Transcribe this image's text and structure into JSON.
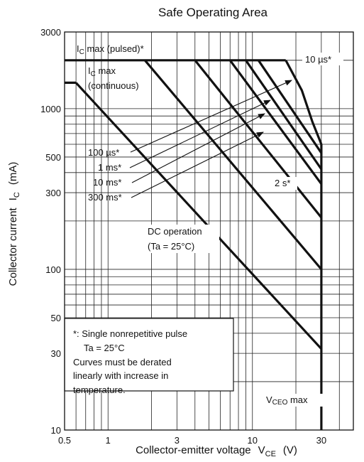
{
  "chart_data": {
    "type": "line",
    "title": "Safe Operating Area",
    "xlabel": {
      "main": "Collector-emitter voltage",
      "sym": "V",
      "sub": "CE",
      "unit": "(V)"
    },
    "ylabel": {
      "main": "Collector current",
      "sym": "I",
      "sub": "C",
      "unit": "(mA)"
    },
    "x_scale": "log",
    "y_scale": "log",
    "xlim": [
      0.5,
      50
    ],
    "ylim": [
      10,
      3000
    ],
    "grid": true,
    "x_ticks": [
      {
        "value": 0.5,
        "label": "0.5"
      },
      {
        "value": 1,
        "label": "1"
      },
      {
        "value": 3,
        "label": "3"
      },
      {
        "value": 10,
        "label": "10"
      },
      {
        "value": 30,
        "label": "30"
      }
    ],
    "y_ticks": [
      {
        "value": 10,
        "label": "10"
      },
      {
        "value": 30,
        "label": "30"
      },
      {
        "value": 50,
        "label": "50"
      },
      {
        "value": 100,
        "label": "100"
      },
      {
        "value": 300,
        "label": "300"
      },
      {
        "value": 500,
        "label": "500"
      },
      {
        "value": 1000,
        "label": "1000"
      },
      {
        "value": 3000,
        "label": "3000"
      }
    ],
    "series": [
      {
        "name": "IC max (pulsed)*",
        "points": [
          [
            0.5,
            2000
          ],
          [
            17,
            2000
          ]
        ]
      },
      {
        "name": "IC max (continuous)",
        "points": [
          [
            0.5,
            1450
          ],
          [
            0.6,
            1450
          ]
        ]
      },
      {
        "name": "DC operation (Ta = 25°C)",
        "points": [
          [
            0.6,
            1450
          ],
          [
            30,
            32
          ]
        ]
      },
      {
        "name": "2 s*",
        "points": [
          [
            1.8,
            2000
          ],
          [
            30,
            100
          ]
        ]
      },
      {
        "name": "300 ms*",
        "points": [
          [
            4,
            2000
          ],
          [
            30,
            210
          ]
        ]
      },
      {
        "name": "10 ms*",
        "points": [
          [
            7,
            2000
          ],
          [
            30,
            340
          ]
        ]
      },
      {
        "name": "1 ms*",
        "points": [
          [
            9,
            2000
          ],
          [
            30,
            420
          ]
        ]
      },
      {
        "name": "100 µs*",
        "points": [
          [
            11,
            2000
          ],
          [
            30,
            530
          ]
        ]
      },
      {
        "name": "10 µs*",
        "points": [
          [
            17,
            2000
          ],
          [
            22,
            1300
          ],
          [
            26,
            830
          ],
          [
            30,
            600
          ]
        ]
      },
      {
        "name": "VCEO max",
        "points": [
          [
            30,
            600
          ],
          [
            30,
            10
          ]
        ]
      }
    ],
    "annotations": {
      "ic_pulsed": {
        "main": "I",
        "sub": "C",
        "rest": " max (pulsed)*"
      },
      "ic_cont_1": {
        "main": "I",
        "sub": "C",
        "rest": " max"
      },
      "ic_cont_2": "(continuous)",
      "t10us": "10 µs*",
      "t100us": "100 µs*",
      "t1ms": "1 ms*",
      "t10ms": "10 ms*",
      "t300ms": "300 ms*",
      "t2s": "2 s*",
      "dc_1": "DC operation",
      "dc_2": "(Ta = 25°C)",
      "vceo": {
        "sym": "V",
        "sub": "CEO",
        "rest": " max"
      },
      "note": [
        "*: Single nonrepetitive pulse",
        "Ta = 25°C",
        "Curves must be derated",
        "linearly with increase in",
        "temperature."
      ]
    }
  }
}
